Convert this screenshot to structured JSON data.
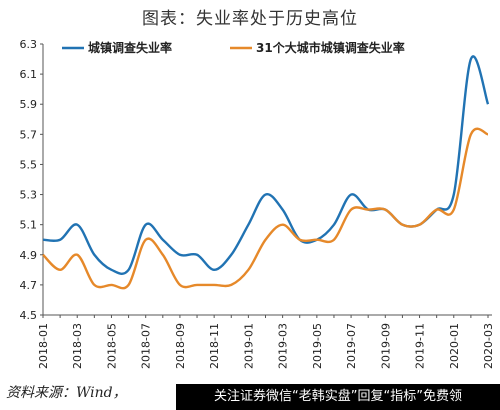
{
  "title": "图表：失业率处于历史高位",
  "source": "资料来源：Wind，",
  "watermark": "关注证券微信“老韩实盘”回复“指标”免费领",
  "colors": {
    "series1": "#2173B3",
    "series2": "#E6892A",
    "axis": "#555555"
  },
  "chart_data": {
    "type": "line",
    "title": "图表：失业率处于历史高位",
    "xlabel": "",
    "ylabel": "",
    "ylim": [
      4.5,
      6.3
    ],
    "yticks": [
      "6.3",
      "6.1",
      "5.9",
      "5.7",
      "5.5",
      "5.3",
      "5.1",
      "4.9",
      "4.7",
      "4.5"
    ],
    "grid": false,
    "legend": "top",
    "x": [
      "2018-01",
      "2018-02",
      "2018-03",
      "2018-04",
      "2018-05",
      "2018-06",
      "2018-07",
      "2018-08",
      "2018-09",
      "2018-10",
      "2018-11",
      "2018-12",
      "2019-01",
      "2019-02",
      "2019-03",
      "2019-04",
      "2019-05",
      "2019-06",
      "2019-07",
      "2019-08",
      "2019-09",
      "2019-10",
      "2019-11",
      "2019-12",
      "2020-01",
      "2020-02",
      "2020-03"
    ],
    "xticklabels": [
      "2018-01",
      "2018-03",
      "2018-05",
      "2018-07",
      "2018-09",
      "2018-11",
      "2019-01",
      "2019-03",
      "2019-05",
      "2019-07",
      "2019-09",
      "2019-11",
      "2020-01",
      "2020-03"
    ],
    "series": [
      {
        "name": "城镇调查失业率",
        "values": [
          5.0,
          5.0,
          5.1,
          4.9,
          4.8,
          4.8,
          5.1,
          5.0,
          4.9,
          4.9,
          4.8,
          4.9,
          5.1,
          5.3,
          5.2,
          5.0,
          5.0,
          5.1,
          5.3,
          5.2,
          5.2,
          5.1,
          5.1,
          5.2,
          5.3,
          6.2,
          5.9
        ]
      },
      {
        "name": "31个大城市城镇调查失业率",
        "values": [
          4.9,
          4.8,
          4.9,
          4.7,
          4.7,
          4.7,
          5.0,
          4.9,
          4.7,
          4.7,
          4.7,
          4.7,
          4.8,
          5.0,
          5.1,
          5.0,
          5.0,
          5.0,
          5.2,
          5.2,
          5.2,
          5.1,
          5.1,
          5.2,
          5.2,
          5.7,
          5.7
        ]
      }
    ]
  }
}
